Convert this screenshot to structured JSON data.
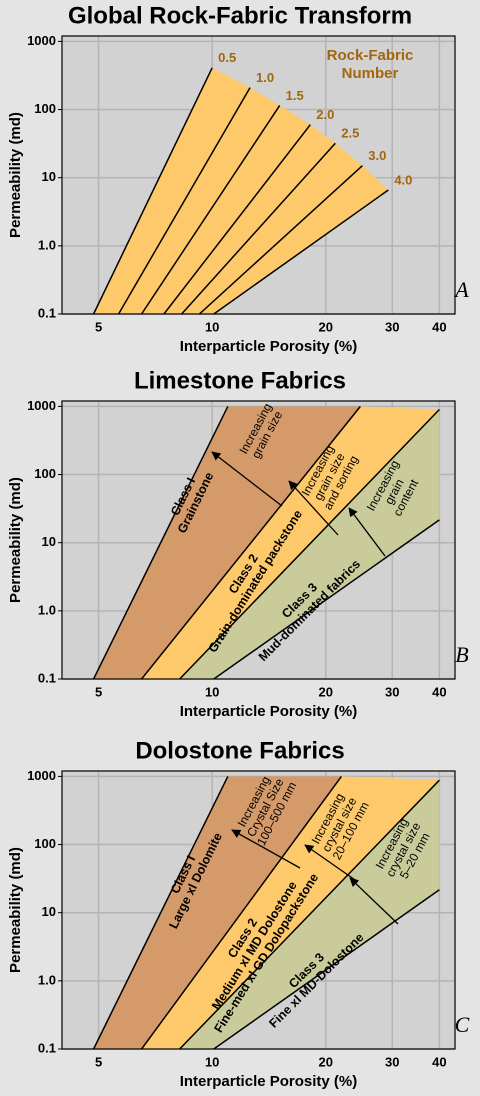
{
  "chart_data": [
    {
      "type": "line",
      "title": "Global Rock-Fabric Transform",
      "panel": "A",
      "x_label": "Interparticle Porosity (%)",
      "y_label": "Permeability (md)",
      "xlim": [
        4,
        44
      ],
      "ylim": [
        0.1,
        1200
      ],
      "log_x": true,
      "log_y": true,
      "grid": true,
      "xticks": [
        5,
        10,
        20,
        30,
        40
      ],
      "yticks": [
        0.1,
        {
          "value": 1,
          "label": "1.0"
        },
        10,
        100,
        1000
      ],
      "annotation": [
        "Rock-Fabric",
        "Number"
      ],
      "annotation_color": "#a2660f",
      "fill": "#fec96a",
      "series": [
        {
          "name": "0.5",
          "color": "#000000",
          "x": [
            4.85,
            10
          ],
          "values": [
            0.1,
            410
          ]
        },
        {
          "name": "1.0",
          "color": "#000000",
          "x": [
            5.65,
            12.6
          ],
          "values": [
            0.1,
            210
          ]
        },
        {
          "name": "1.5",
          "color": "#000000",
          "x": [
            6.5,
            15.1
          ],
          "values": [
            0.1,
            115
          ]
        },
        {
          "name": "2.0",
          "color": "#000000",
          "x": [
            7.45,
            18.2
          ],
          "values": [
            0.1,
            60
          ]
        },
        {
          "name": "2.5",
          "color": "#000000",
          "x": [
            8.3,
            21.2
          ],
          "values": [
            0.1,
            32
          ]
        },
        {
          "name": "3.0",
          "color": "#000000",
          "x": [
            9.25,
            25
          ],
          "values": [
            0.1,
            15
          ]
        },
        {
          "name": "4.0",
          "color": "#000000",
          "x": [
            10.1,
            29.3
          ],
          "values": [
            0.1,
            6.6
          ]
        }
      ]
    },
    {
      "type": "area",
      "title": "Limestone Fabrics",
      "panel": "B",
      "x_label": "Interparticle Porosity (%)",
      "y_label": "Permeability (md)",
      "xlim": [
        4,
        44
      ],
      "ylim": [
        0.1,
        1200
      ],
      "log_x": true,
      "log_y": true,
      "grid": true,
      "xticks": [
        5,
        10,
        20,
        30,
        40
      ],
      "yticks": [
        0.1,
        {
          "value": 1,
          "label": "1.0"
        },
        10,
        100,
        1000
      ],
      "boundaries": [
        {
          "x": [
            4.85,
            11
          ],
          "values": [
            0.1,
            1000
          ]
        },
        {
          "x": [
            6.5,
            24.7
          ],
          "values": [
            0.1,
            1000
          ]
        },
        {
          "x": [
            8.2,
            40
          ],
          "values": [
            0.1,
            900
          ]
        },
        {
          "x": [
            10.1,
            40
          ],
          "values": [
            0.1,
            21.6
          ]
        }
      ],
      "regions": [
        {
          "name": [
            "Class I",
            "Grainstone"
          ],
          "color": "#d49a6a"
        },
        {
          "name": [
            "Class 2",
            "Grain-dominated packstone"
          ],
          "color": "#fec96a"
        },
        {
          "name": [
            "Class 3",
            "Mud-dominated fabrics"
          ],
          "color": "#c9cc9a"
        }
      ],
      "annotations": [
        {
          "text": [
            "Increasing",
            "grain size"
          ]
        },
        {
          "text": [
            "Increasing",
            "grain size",
            "and sorting"
          ]
        },
        {
          "text": [
            "Increasing",
            "grain",
            "content"
          ]
        }
      ]
    },
    {
      "type": "area",
      "title": "Dolostone Fabrics",
      "panel": "C",
      "x_label": "Interparticle Porosity (%)",
      "y_label": "Permeability (md)",
      "xlim": [
        4,
        44
      ],
      "ylim": [
        0.1,
        1200
      ],
      "log_x": true,
      "log_y": true,
      "grid": true,
      "xticks": [
        5,
        10,
        20,
        30,
        40
      ],
      "yticks": [
        0.1,
        {
          "value": 1,
          "label": "1.0"
        },
        10,
        100,
        1000
      ],
      "boundaries": [
        {
          "x": [
            4.85,
            11
          ],
          "values": [
            0.1,
            1000
          ]
        },
        {
          "x": [
            6.5,
            22
          ],
          "values": [
            0.1,
            1000
          ]
        },
        {
          "x": [
            8.2,
            40
          ],
          "values": [
            0.1,
            880
          ]
        },
        {
          "x": [
            10.1,
            40
          ],
          "values": [
            0.1,
            21.7
          ]
        }
      ],
      "regions": [
        {
          "name": [
            "Class I",
            "Large xl Dolomite"
          ],
          "color": "#d49a6a"
        },
        {
          "name": [
            "Class 2",
            "Medium xl MD Dolostone",
            "Fine-med xl GD Dolopackstone"
          ],
          "color": "#fec96a"
        },
        {
          "name": [
            "Class 3",
            "Fine xl MD-Dolostone"
          ],
          "color": "#c9cc9a"
        }
      ],
      "annotations": [
        {
          "text": [
            "Increasing",
            "Crystal Size",
            "100–500 mm"
          ]
        },
        {
          "text": [
            "Increasing",
            "crystal size",
            "20–100 mm"
          ]
        },
        {
          "text": [
            "Increasing",
            "crystal size",
            "5–20 mm"
          ]
        }
      ]
    }
  ]
}
